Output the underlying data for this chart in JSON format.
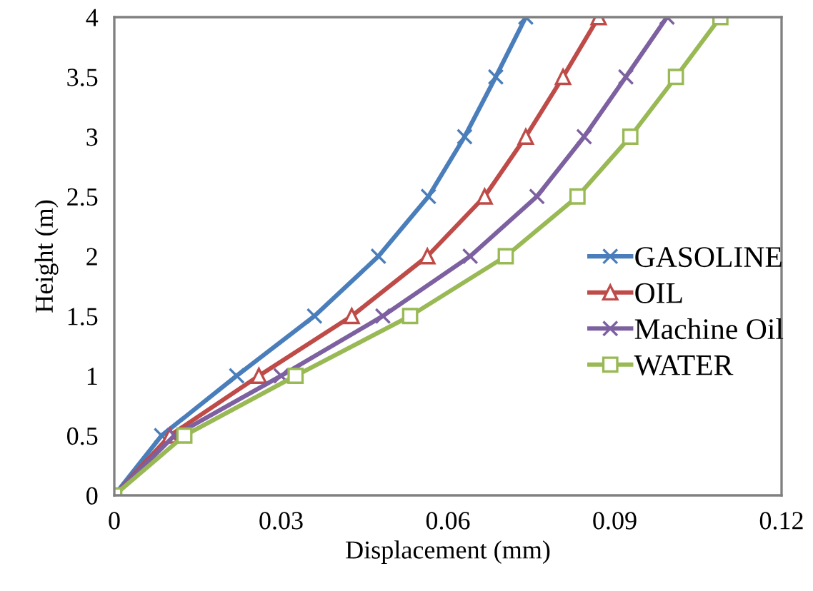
{
  "chart_data": {
    "type": "line",
    "xlabel": "Displacement (mm)",
    "ylabel": "Height (m)",
    "xlim": [
      0,
      0.12
    ],
    "xticks": [
      0,
      0.03,
      0.06,
      0.09,
      0.12
    ],
    "ylim": [
      0,
      4
    ],
    "yticks": [
      0,
      0.5,
      1,
      1.5,
      2,
      2.5,
      3,
      3.5,
      4
    ],
    "grid": false,
    "legend": "right",
    "series": [
      {
        "name": "GASOLINE",
        "color": "#4a7ebb",
        "marker": "cross",
        "x": [
          0,
          0.0085,
          0.022,
          0.036,
          0.0475,
          0.0565,
          0.063,
          0.0686,
          0.074
        ],
        "values": [
          0,
          0.5,
          1,
          1.5,
          2,
          2.5,
          3,
          3.5,
          4
        ]
      },
      {
        "name": "OIL",
        "color": "#be4b48",
        "marker": "triangle",
        "x": [
          0,
          0.01,
          0.026,
          0.0427,
          0.0563,
          0.0666,
          0.074,
          0.0807,
          0.0871
        ],
        "values": [
          0,
          0.5,
          1,
          1.5,
          2,
          2.5,
          3,
          3.5,
          4
        ]
      },
      {
        "name": "Machine Oil",
        "color": "#7d60a0",
        "marker": "cross",
        "x": [
          0,
          0.0108,
          0.03,
          0.0483,
          0.064,
          0.076,
          0.0845,
          0.092,
          0.0994
        ],
        "values": [
          0,
          0.5,
          1,
          1.5,
          2,
          2.5,
          3,
          3.5,
          4
        ]
      },
      {
        "name": "WATER",
        "color": "#98b954",
        "marker": "square",
        "x": [
          0,
          0.0126,
          0.0326,
          0.0532,
          0.0704,
          0.0833,
          0.0928,
          0.101,
          0.109
        ],
        "values": [
          0,
          0.5,
          1,
          1.5,
          2,
          2.5,
          3,
          3.5,
          4
        ]
      }
    ]
  }
}
